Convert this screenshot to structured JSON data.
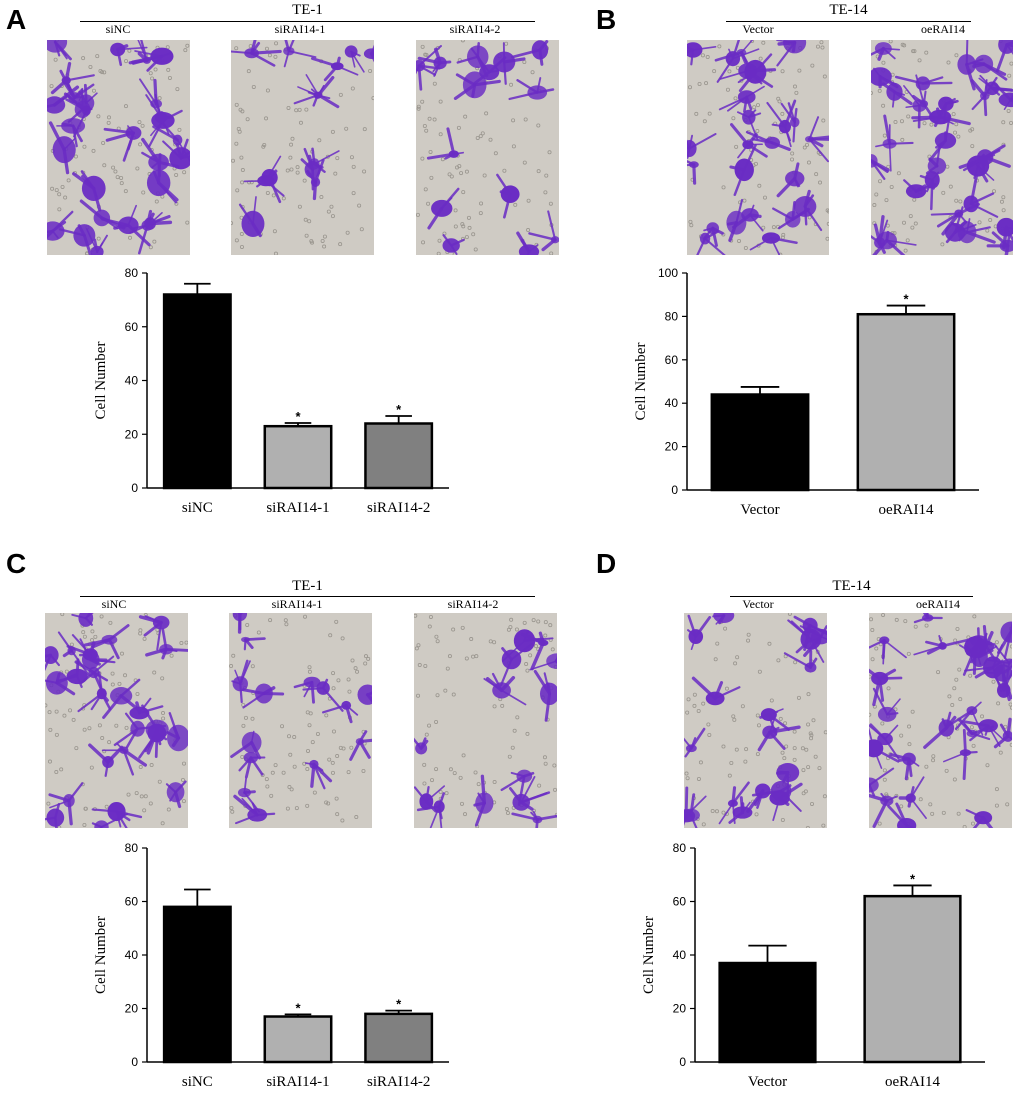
{
  "panels": [
    {
      "letter": "A",
      "group_title": "TE-1",
      "image_labels": [
        "siNC",
        "siRAI14-1",
        "siRAI14-2"
      ],
      "chart_data": {
        "type": "bar",
        "categories": [
          "siNC",
          "siRAI14-1",
          "siRAI14-2"
        ],
        "values": [
          72,
          23,
          24
        ],
        "errors": [
          4,
          1.2,
          2.8
        ],
        "significance": [
          "",
          "*",
          "*"
        ],
        "bar_colors": [
          "#000000",
          "#b0b0b0",
          "#808080"
        ],
        "ylabel": "Cell Number",
        "ylim": [
          0,
          80
        ],
        "yticks": [
          0,
          20,
          40,
          60,
          80
        ]
      }
    },
    {
      "letter": "B",
      "group_title": "TE-14",
      "image_labels": [
        "Vector",
        "oeRAI14"
      ],
      "chart_data": {
        "type": "bar",
        "categories": [
          "Vector",
          "oeRAI14"
        ],
        "values": [
          44,
          81
        ],
        "errors": [
          3.5,
          4
        ],
        "significance": [
          "",
          "*"
        ],
        "bar_colors": [
          "#000000",
          "#b0b0b0"
        ],
        "ylabel": "Cell Number",
        "ylim": [
          0,
          100
        ],
        "yticks": [
          0,
          20,
          40,
          60,
          80,
          100
        ]
      }
    },
    {
      "letter": "C",
      "group_title": "TE-1",
      "image_labels": [
        "siNC",
        "siRAI14-1",
        "siRAI14-2"
      ],
      "chart_data": {
        "type": "bar",
        "categories": [
          "siNC",
          "siRAI14-1",
          "siRAI14-2"
        ],
        "values": [
          58,
          17,
          18
        ],
        "errors": [
          6.5,
          0.8,
          1.2
        ],
        "significance": [
          "",
          "*",
          "*"
        ],
        "bar_colors": [
          "#000000",
          "#b0b0b0",
          "#808080"
        ],
        "ylabel": "Cell Number",
        "ylim": [
          0,
          80
        ],
        "yticks": [
          0,
          20,
          40,
          60,
          80
        ]
      }
    },
    {
      "letter": "D",
      "group_title": "TE-14",
      "image_labels": [
        "Vector",
        "oeRAI14"
      ],
      "chart_data": {
        "type": "bar",
        "categories": [
          "Vector",
          "oeRAI14"
        ],
        "values": [
          37,
          62
        ],
        "errors": [
          6.5,
          4
        ],
        "significance": [
          "",
          "*"
        ],
        "bar_colors": [
          "#000000",
          "#b0b0b0"
        ],
        "ylabel": "Cell Number",
        "ylim": [
          0,
          80
        ],
        "yticks": [
          0,
          20,
          40,
          60,
          80
        ]
      }
    }
  ],
  "colors": {
    "stain": "#6a2cc4",
    "membrane_bg": "#cfcbc4"
  },
  "image_content": "crystal-violet-stained-cell-micrograph"
}
